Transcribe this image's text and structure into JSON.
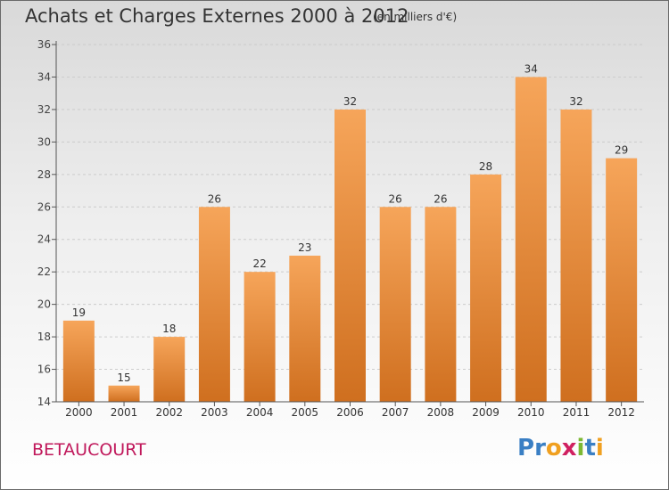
{
  "title": "Achats et Charges Externes 2000 à 2012",
  "subtitle": "(en milliers d'€)",
  "commune": "BETAUCOURT",
  "logo": {
    "letters": [
      "P",
      "r",
      "o",
      "x",
      "i",
      "t",
      "i"
    ],
    "colors": [
      "#3a7fc4",
      "#3a7fc4",
      "#f0a020",
      "#d02060",
      "#7cb832",
      "#3a7fc4",
      "#f0a020"
    ]
  },
  "colors": {
    "bar_top": "#f6a55a",
    "bar_bottom": "#cf6f1f",
    "axis": "#555555",
    "grid": "#cccccc"
  },
  "chart_data": {
    "type": "bar",
    "categories": [
      "2000",
      "2001",
      "2002",
      "2003",
      "2004",
      "2005",
      "2006",
      "2007",
      "2008",
      "2009",
      "2010",
      "2011",
      "2012"
    ],
    "values": [
      19,
      15,
      18,
      26,
      22,
      23,
      32,
      26,
      26,
      28,
      34,
      32,
      29
    ],
    "ylim": [
      14,
      36
    ],
    "yticks": [
      14,
      16,
      18,
      20,
      22,
      24,
      26,
      28,
      30,
      32,
      34,
      36
    ],
    "grid": "horizontal dashed",
    "legend": "none"
  }
}
